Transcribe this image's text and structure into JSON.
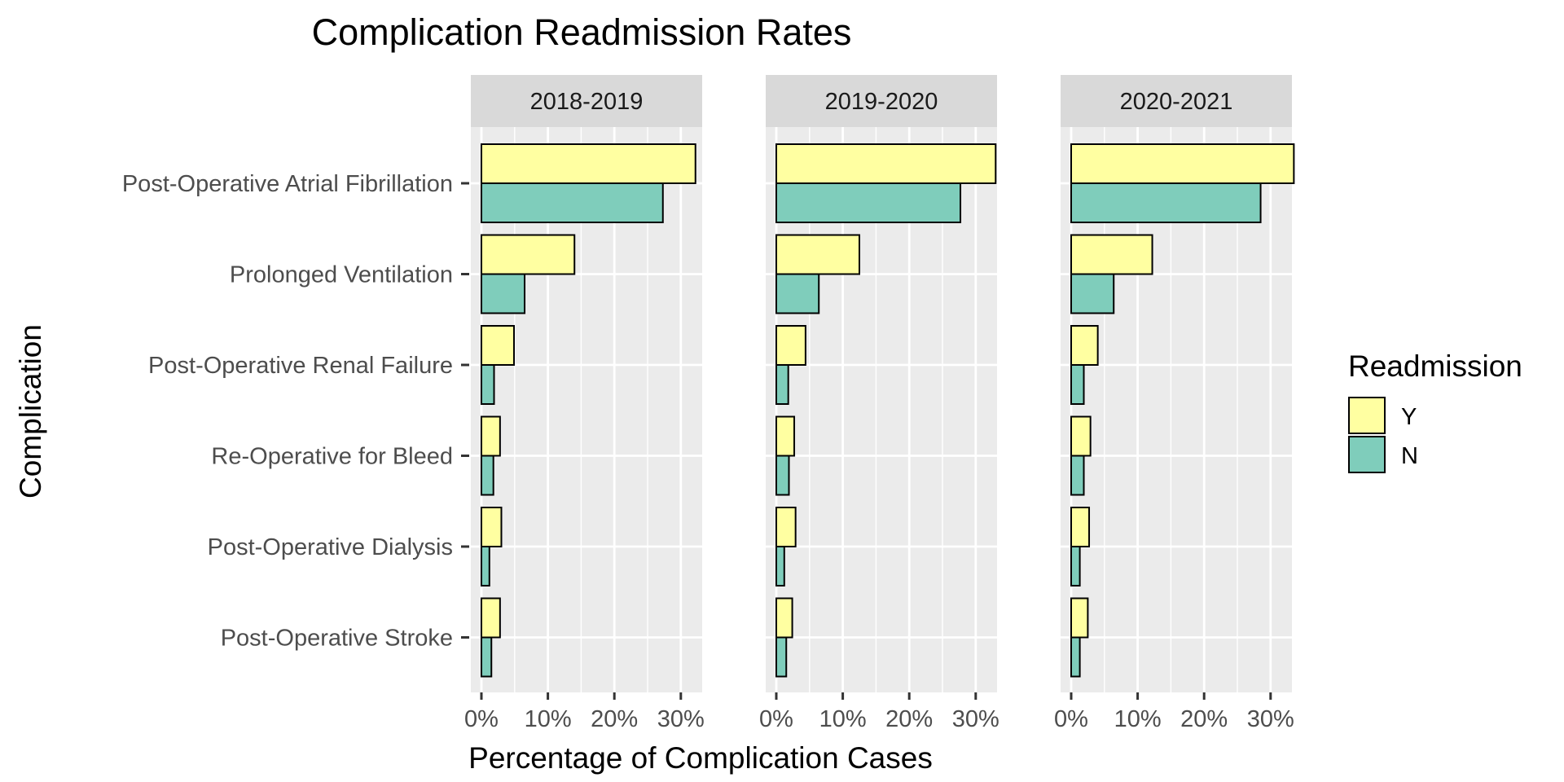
{
  "chart_data": {
    "type": "bar",
    "orientation": "horizontal",
    "title": "Complication Readmission Rates",
    "xlabel": "Percentage of Complication Cases",
    "ylabel": "Complication",
    "xlim": [
      0,
      0.35
    ],
    "x_ticks": [
      0,
      0.1,
      0.2,
      0.3
    ],
    "x_tick_labels": [
      "0%",
      "10%",
      "20%",
      "30%"
    ],
    "grid": true,
    "categories": [
      "Post-Operative Atrial Fibrillation",
      "Prolonged Ventilation",
      "Post-Operative Renal Failure",
      "Re-Operative for Bleed",
      "Post-Operative Dialysis",
      "Post-Operative Stroke"
    ],
    "legend": {
      "title": "Readmission",
      "position": "right",
      "entries": [
        {
          "label": "Y",
          "color": "#FFFFA1"
        },
        {
          "label": "N",
          "color": "#7FCDBB"
        }
      ]
    },
    "facets": [
      {
        "label": "2018-2019",
        "series": [
          {
            "name": "Y",
            "values": [
              0.322,
              0.14,
              0.049,
              0.028,
              0.03,
              0.028
            ]
          },
          {
            "name": "N",
            "values": [
              0.273,
              0.065,
              0.019,
              0.018,
              0.012,
              0.015
            ]
          }
        ]
      },
      {
        "label": "2019-2020",
        "series": [
          {
            "name": "Y",
            "values": [
              0.33,
              0.125,
              0.044,
              0.027,
              0.029,
              0.024
            ]
          },
          {
            "name": "N",
            "values": [
              0.277,
              0.064,
              0.018,
              0.019,
              0.012,
              0.015
            ]
          }
        ]
      },
      {
        "label": "2020-2021",
        "series": [
          {
            "name": "Y",
            "values": [
              0.335,
              0.122,
              0.04,
              0.029,
              0.027,
              0.025
            ]
          },
          {
            "name": "N",
            "values": [
              0.285,
              0.064,
              0.019,
              0.019,
              0.013,
              0.013
            ]
          }
        ]
      }
    ]
  }
}
